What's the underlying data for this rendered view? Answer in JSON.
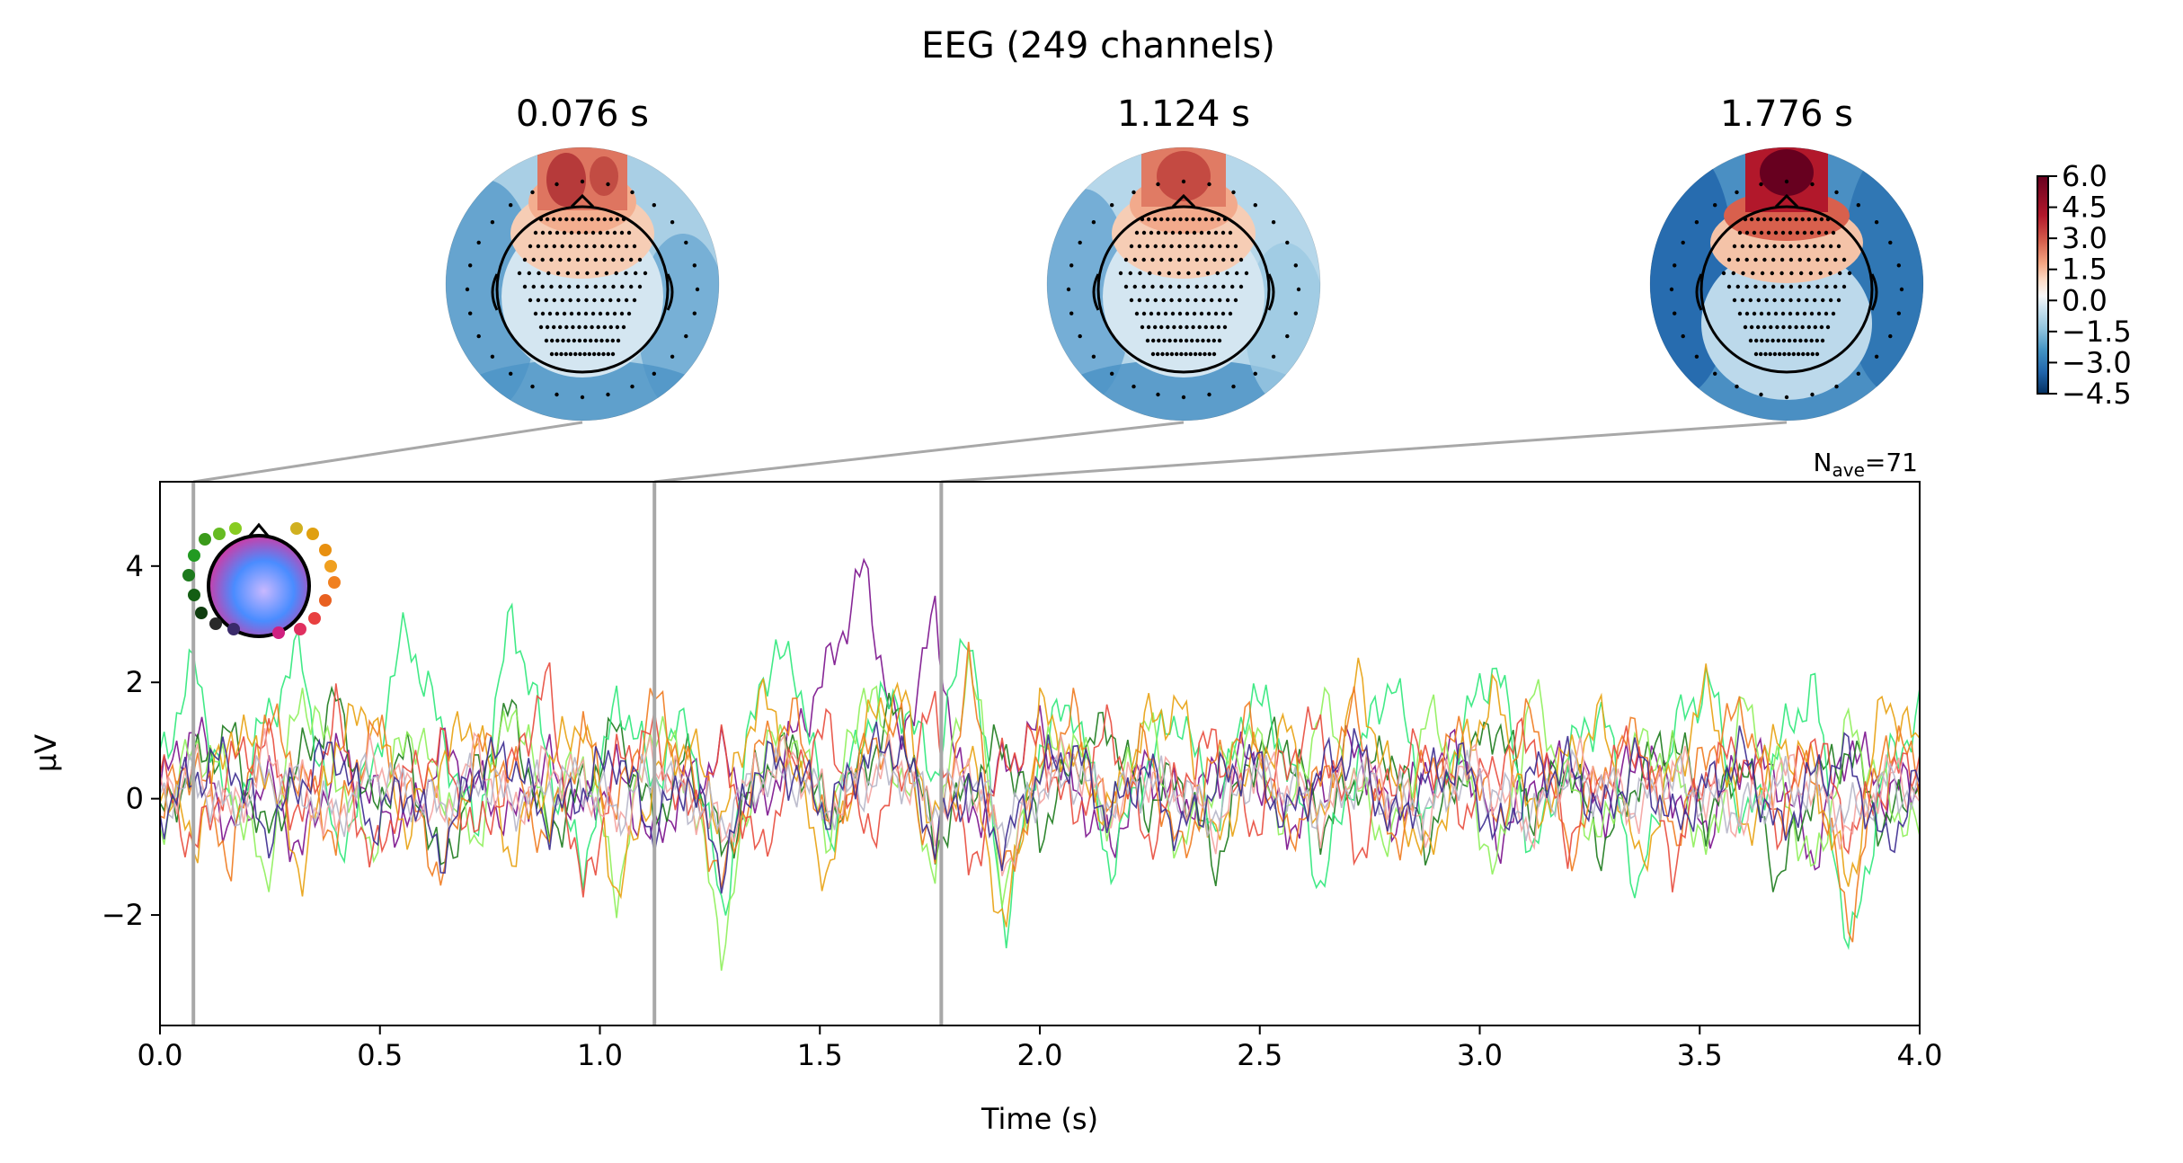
{
  "figure": {
    "title": "EEG (249 channels)"
  },
  "topomaps": [
    {
      "time_label": "0.076 s",
      "time": 0.076
    },
    {
      "time_label": "1.124 s",
      "time": 1.124
    },
    {
      "time_label": "1.776 s",
      "time": 1.776
    }
  ],
  "colorbar": {
    "tick_labels": [
      "6.0",
      "4.5",
      "3.0",
      "1.5",
      "0.0",
      "−1.5",
      "−3.0",
      "−4.5"
    ],
    "range": [
      -4.5,
      6.0
    ],
    "colormap": [
      "#053061",
      "#2166ac",
      "#4393c3",
      "#92c5de",
      "#d1e5f0",
      "#f7f7f7",
      "#fddbc7",
      "#f4a582",
      "#d6604d",
      "#b2182b",
      "#67001f"
    ]
  },
  "annotation": {
    "nave_prefix": "N",
    "nave_sub": "ave",
    "nave_value": "=71"
  },
  "chart_data": {
    "type": "line",
    "title": "EEG (249 channels)",
    "xlabel": "Time (s)",
    "ylabel": "µV",
    "xlim": [
      0.0,
      4.0
    ],
    "ylim": [
      -3.9,
      5.45
    ],
    "xticks": [
      0.0,
      0.5,
      1.0,
      1.5,
      2.0,
      2.5,
      3.0,
      3.5,
      4.0
    ],
    "xtick_labels": [
      "0.0",
      "0.5",
      "1.0",
      "1.5",
      "2.0",
      "2.5",
      "3.0",
      "3.5",
      "4.0"
    ],
    "yticks": [
      -2,
      0,
      2,
      4
    ],
    "ytick_labels": [
      "−2",
      "0",
      "2",
      "4"
    ],
    "grid": false,
    "legend": "none (channel-position color inset, top-left)",
    "time_markers": [
      0.076,
      1.124,
      1.776
    ],
    "series": [
      {
        "color": "#7a0f8c",
        "values": [
          0.2,
          1.6,
          -0.8,
          0.5,
          -1.2,
          0.9,
          0.1,
          -0.7,
          1.1,
          0.3,
          -0.5,
          0.8,
          -0.3,
          0.6,
          -1.0,
          0.4,
          0.9,
          -0.4,
          1.3,
          2.8,
          4.95,
          1.0,
          3.9,
          -0.6,
          0.7,
          1.5,
          0.2,
          -1.1,
          0.8,
          -0.2,
          0.5,
          0.9,
          -0.7,
          0.3,
          1.2,
          -0.5,
          0.6,
          1.1,
          -0.9,
          0.4,
          0.8,
          -0.3,
          1.0,
          0.2,
          -0.6,
          0.9,
          0.5,
          -1.3,
          1.3,
          0.1,
          0.4
        ]
      },
      {
        "color": "#1b7a1b",
        "values": [
          -0.4,
          0.7,
          1.4,
          -0.9,
          0.8,
          2.1,
          -0.3,
          1.0,
          -1.6,
          0.5,
          1.9,
          -0.8,
          0.2,
          1.5,
          -0.5,
          0.9,
          -1.2,
          0.6,
          1.1,
          -0.4,
          0.7,
          2.0,
          -1.0,
          0.3,
          1.2,
          -0.7,
          0.8,
          1.6,
          -0.2,
          0.5,
          -1.4,
          0.9,
          1.3,
          -0.6,
          0.4,
          1.0,
          -0.9,
          0.6,
          1.7,
          -0.3,
          0.8,
          -1.1,
          0.5,
          1.4,
          -0.5,
          0.9,
          -1.8,
          0.3,
          1.1,
          -0.7,
          0.6
        ]
      },
      {
        "color": "#2ee87a",
        "values": [
          0.8,
          2.9,
          -0.5,
          1.7,
          3.2,
          -1.2,
          0.6,
          3.7,
          1.4,
          -0.8,
          4.1,
          0.9,
          -1.6,
          2.3,
          0.4,
          1.8,
          -2.5,
          2.6,
          3.1,
          -0.9,
          1.6,
          2.2,
          0.5,
          3.9,
          -2.8,
          1.2,
          2.1,
          -1.5,
          0.7,
          1.9,
          -0.6,
          2.4,
          1.0,
          -1.9,
          0.8,
          2.7,
          -0.4,
          1.5,
          3.0,
          -1.3,
          0.9,
          2.0,
          -2.2,
          1.4,
          2.6,
          -0.7,
          1.1,
          2.5,
          -3.5,
          0.6,
          1.8
        ]
      },
      {
        "color": "#8ef05a",
        "values": [
          -0.6,
          1.2,
          0.4,
          -1.8,
          2.4,
          0.7,
          -1.1,
          1.6,
          0.3,
          -0.9,
          2.2,
          -0.4,
          1.0,
          -2.0,
          1.7,
          0.5,
          -3.2,
          0.9,
          1.4,
          -0.8,
          2.5,
          0.6,
          -1.4,
          3.2,
          -2.1,
          0.8,
          1.3,
          -0.5,
          1.9,
          -1.2,
          0.4,
          1.5,
          -0.7,
          2.1,
          0.2,
          -1.0,
          1.8,
          0.6,
          -1.6,
          2.3,
          0.3,
          -0.9,
          1.2,
          0.8,
          -1.3,
          2.0,
          0.5,
          -1.7,
          1.6,
          0.1,
          -0.8
        ]
      },
      {
        "color": "#e8a10f",
        "values": [
          0.3,
          -0.9,
          1.5,
          0.8,
          -1.6,
          1.2,
          2.0,
          -0.7,
          0.9,
          1.7,
          -1.3,
          0.6,
          1.8,
          -2.1,
          0.4,
          1.3,
          -0.5,
          2.3,
          0.7,
          -1.8,
          1.4,
          2.4,
          -0.6,
          1.0,
          -3.0,
          1.9,
          0.8,
          -0.4,
          1.6,
          2.0,
          -1.1,
          0.7,
          1.5,
          -0.8,
          2.6,
          0.4,
          -1.4,
          1.1,
          2.2,
          -0.6,
          0.9,
          1.7,
          -1.5,
          0.5,
          2.4,
          -0.9,
          1.3,
          0.6,
          -2.0,
          2.3,
          1.0
        ]
      },
      {
        "color": "#f07a1e",
        "values": [
          -0.2,
          0.9,
          -1.4,
          1.8,
          0.5,
          -0.8,
          1.6,
          0.2,
          -1.7,
          1.1,
          0.7,
          -1.0,
          1.4,
          -0.3,
          2.2,
          0.6,
          -1.9,
          1.0,
          1.8,
          -0.7,
          0.9,
          1.6,
          -1.5,
          2.8,
          -1.8,
          0.6,
          1.8,
          -0.5,
          1.2,
          -1.3,
          0.8,
          1.6,
          -0.9,
          0.4,
          1.9,
          -1.1,
          0.7,
          1.3,
          -0.6,
          2.0,
          -1.2,
          0.5,
          1.5,
          -0.8,
          1.1,
          1.9,
          -0.4,
          0.8,
          -2.8,
          1.4,
          0.6
        ]
      },
      {
        "color": "#e84a3c",
        "values": [
          0.5,
          -1.1,
          0.7,
          1.3,
          -0.6,
          1.9,
          -1.5,
          0.4,
          1.1,
          -0.9,
          0.6,
          2.6,
          -2.2,
          0.8,
          1.4,
          -0.4,
          1.0,
          -1.3,
          0.7,
          1.5,
          -0.8,
          0.3,
          1.9,
          -1.6,
          0.9,
          1.2,
          -0.5,
          1.7,
          -1.0,
          0.4,
          1.3,
          -0.7,
          0.9,
          1.6,
          -1.2,
          0.5,
          1.1,
          -0.3,
          0.8,
          1.4,
          -0.9,
          0.6,
          1.2,
          -1.4,
          0.7,
          1.0,
          -0.6,
          1.5,
          -0.8,
          0.3,
          0.9
        ]
      },
      {
        "color": "#f4a3a0",
        "values": [
          0.1,
          0.6,
          -0.4,
          0.9,
          0.3,
          -0.7,
          0.8,
          0.2,
          -0.5,
          1.0,
          -0.3,
          0.7,
          0.4,
          -0.6,
          0.9,
          0.1,
          -0.8,
          0.6,
          0.9,
          -0.2,
          0.5,
          0.8,
          -0.5,
          0.7,
          -1.4,
          0.4,
          0.9,
          -0.3,
          0.6,
          0.2,
          -0.6,
          0.8,
          0.3,
          -0.4,
          0.7,
          0.1,
          -0.5,
          0.9,
          0.2,
          -0.6,
          0.8,
          0.4,
          -0.3,
          0.7,
          0.1,
          -0.5,
          0.6,
          0.3,
          -0.7,
          0.5,
          0.2
        ]
      },
      {
        "color": "#b6b6c8",
        "values": [
          0.0,
          0.4,
          -0.3,
          0.5,
          0.2,
          -0.4,
          0.6,
          0.1,
          -0.2,
          0.5,
          -0.1,
          0.3,
          0.4,
          -0.3,
          0.6,
          0.0,
          -0.5,
          0.4,
          0.5,
          -0.2,
          0.3,
          0.6,
          -0.2,
          0.4,
          -0.6,
          0.2,
          0.5,
          -0.1,
          0.4,
          0.1,
          -0.3,
          0.5,
          0.2,
          -0.2,
          0.4,
          0.0,
          -0.3,
          0.5,
          0.1,
          -0.4,
          0.5,
          0.2,
          -0.1,
          0.4,
          0.0,
          -0.3,
          0.3,
          0.2,
          -0.4,
          0.3,
          0.1
        ]
      },
      {
        "color": "#3b2a8f",
        "values": [
          -0.3,
          0.5,
          0.9,
          -0.8,
          0.4,
          1.1,
          -0.6,
          0.3,
          -1.2,
          0.7,
          0.9,
          -0.5,
          0.2,
          1.0,
          -0.7,
          0.5,
          -1.5,
          0.8,
          0.6,
          -0.3,
          0.9,
          1.2,
          -0.9,
          0.4,
          -1.1,
          0.6,
          1.0,
          -0.4,
          0.7,
          -0.8,
          0.3,
          0.9,
          -0.5,
          0.6,
          1.1,
          -0.6,
          0.4,
          0.8,
          -0.9,
          0.5,
          0.7,
          -0.4,
          0.9,
          -0.6,
          0.3,
          1.0,
          -0.8,
          0.5,
          0.9,
          -1.1,
          0.4
        ]
      }
    ]
  }
}
